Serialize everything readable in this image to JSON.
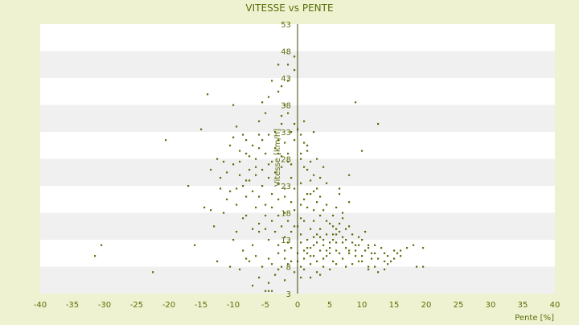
{
  "colors": {
    "background": "#eef2d0",
    "plot_band_white": "#ffffff",
    "plot_band_gray": "#f0f0f0",
    "point": "#5a6e0a",
    "text": "#5a6e0a",
    "axis_line": "#3a4a00"
  },
  "chart_data": {
    "type": "scatter",
    "title": "VITESSE vs PENTE",
    "xlabel": "Pente [%]",
    "ylabel": "Vitesse [km/h]",
    "xlim": [
      -40,
      40
    ],
    "ylim": [
      3,
      53
    ],
    "x_ticks": [
      "-40",
      "-35",
      "-30",
      "-25",
      "-20",
      "-15",
      "-10",
      "-5",
      "0",
      "5",
      "10",
      "15",
      "20",
      "25",
      "30",
      "35",
      "40"
    ],
    "y_ticks": [
      "3",
      "8",
      "13",
      "18",
      "23",
      "28",
      "33",
      "38",
      "43",
      "48",
      "53"
    ],
    "grid": "horizontal alternating bands",
    "points": [
      [
        -31.5,
        10
      ],
      [
        -30.5,
        12
      ],
      [
        -22.5,
        7
      ],
      [
        -14,
        40
      ],
      [
        -15,
        33.5
      ],
      [
        -20.5,
        31.5
      ],
      [
        -17,
        23
      ],
      [
        -13,
        15.5
      ],
      [
        -12.5,
        9
      ],
      [
        -10,
        38
      ],
      [
        -9.5,
        34
      ],
      [
        -8.5,
        32.5
      ],
      [
        -10.5,
        30.5
      ],
      [
        -8,
        31.5
      ],
      [
        -7.5,
        28.5
      ],
      [
        -9,
        27.5
      ],
      [
        -11.5,
        27.5
      ],
      [
        -12,
        24.5
      ],
      [
        -10.5,
        22
      ],
      [
        -9.5,
        19.5
      ],
      [
        -8.5,
        17
      ],
      [
        -11,
        20.5
      ],
      [
        -7,
        15
      ],
      [
        -7.5,
        9
      ],
      [
        -6.5,
        10
      ],
      [
        -5.5,
        8
      ],
      [
        -4.5,
        9.5
      ],
      [
        -10,
        13
      ],
      [
        -8,
        17.5
      ],
      [
        -8,
        24
      ],
      [
        -6,
        30
      ],
      [
        -6,
        35
      ],
      [
        -5,
        36.5
      ],
      [
        -5,
        3.5
      ],
      [
        -4.5,
        3.5
      ],
      [
        -4,
        3.5
      ],
      [
        -4,
        42.5
      ],
      [
        -3,
        40.5
      ],
      [
        -2,
        38
      ],
      [
        -1.5,
        45.5
      ],
      [
        -0.5,
        47
      ],
      [
        -1.5,
        36.5
      ],
      [
        -2.5,
        34.5
      ],
      [
        -3.5,
        33
      ],
      [
        -4.5,
        32.5
      ],
      [
        -5.5,
        31.5
      ],
      [
        -6.5,
        28
      ],
      [
        -3,
        29
      ],
      [
        -2,
        31
      ],
      [
        -1.5,
        29
      ],
      [
        -1,
        27
      ],
      [
        -2.5,
        26.5
      ],
      [
        -3.5,
        25.5
      ],
      [
        -4.5,
        24.5
      ],
      [
        -5.5,
        23
      ],
      [
        -6,
        21
      ],
      [
        -5,
        19.5
      ],
      [
        -4,
        21.5
      ],
      [
        -3,
        20.5
      ],
      [
        -2,
        22.5
      ],
      [
        -1,
        24.5
      ],
      [
        -0.5,
        22.5
      ],
      [
        -1,
        20
      ],
      [
        -2,
        18
      ],
      [
        -3,
        17.5
      ],
      [
        -4,
        16.5
      ],
      [
        -5,
        15
      ],
      [
        -4.5,
        13
      ],
      [
        -3.5,
        14.5
      ],
      [
        -2.5,
        15.5
      ],
      [
        -1.5,
        16.5
      ],
      [
        -0.5,
        18.5
      ],
      [
        -1.5,
        12.5
      ],
      [
        -2,
        11
      ],
      [
        -3,
        10.5
      ],
      [
        -1,
        9
      ],
      [
        -0.5,
        7
      ],
      [
        -1.5,
        8.5
      ],
      [
        -2.5,
        8
      ],
      [
        0.5,
        6
      ],
      [
        0.5,
        32.5
      ],
      [
        1,
        31
      ],
      [
        1.5,
        29.5
      ],
      [
        0.5,
        28
      ],
      [
        2,
        27.5
      ],
      [
        1.5,
        26
      ],
      [
        2.5,
        25
      ],
      [
        3.5,
        24.5
      ],
      [
        4,
        26.5
      ],
      [
        4.5,
        23.5
      ],
      [
        3,
        22.5
      ],
      [
        2,
        21.5
      ],
      [
        1,
        20.5
      ],
      [
        0.5,
        23.5
      ],
      [
        1.5,
        19
      ],
      [
        2.5,
        18.5
      ],
      [
        3.5,
        17.5
      ],
      [
        4.5,
        16.5
      ],
      [
        5.5,
        15.5
      ],
      [
        6,
        19
      ],
      [
        6.5,
        21.5
      ],
      [
        7,
        17
      ],
      [
        8,
        20
      ],
      [
        8,
        15.5
      ],
      [
        7,
        13.5
      ],
      [
        6,
        12.5
      ],
      [
        5,
        11.5
      ],
      [
        4,
        13
      ],
      [
        3,
        14
      ],
      [
        2,
        15
      ],
      [
        1,
        16.5
      ],
      [
        0.5,
        14
      ],
      [
        1.5,
        13
      ],
      [
        2.5,
        12
      ],
      [
        3.5,
        11
      ],
      [
        4.5,
        10
      ],
      [
        5.5,
        9
      ],
      [
        6.5,
        10.5
      ],
      [
        7.5,
        11.5
      ],
      [
        8.5,
        12.5
      ],
      [
        9.5,
        13.5
      ],
      [
        10.5,
        14.5
      ],
      [
        11,
        12
      ],
      [
        12,
        10.5
      ],
      [
        13,
        11.5
      ],
      [
        14,
        10
      ],
      [
        15,
        9.5
      ],
      [
        16,
        11
      ],
      [
        16,
        10
      ],
      [
        18.5,
        8
      ],
      [
        18,
        12
      ],
      [
        19.5,
        8
      ],
      [
        19.5,
        11.5
      ],
      [
        13.5,
        7.5
      ],
      [
        11,
        8
      ],
      [
        9.5,
        9
      ],
      [
        8.5,
        8.5
      ],
      [
        7.5,
        8
      ],
      [
        6,
        8.5
      ],
      [
        5,
        7.5
      ],
      [
        4,
        8
      ],
      [
        3,
        9
      ],
      [
        2,
        10
      ],
      [
        1,
        11
      ],
      [
        9,
        38.5
      ],
      [
        12.5,
        34.5
      ],
      [
        10,
        29.5
      ],
      [
        8,
        25
      ],
      [
        6.5,
        22.5
      ],
      [
        7.5,
        13
      ],
      [
        9,
        11
      ],
      [
        10,
        10
      ],
      [
        11.5,
        9.5
      ],
      [
        12,
        8
      ],
      [
        14.5,
        9
      ],
      [
        2,
        8.5
      ],
      [
        3.5,
        6.5
      ],
      [
        1,
        7.5
      ],
      [
        -3,
        45.5
      ],
      [
        -3,
        12
      ],
      [
        -6,
        14.5
      ],
      [
        -7,
        12
      ],
      [
        -0.5,
        34.5
      ],
      [
        0,
        33.5
      ],
      [
        1,
        35
      ],
      [
        1.5,
        30.5
      ],
      [
        -1,
        33
      ],
      [
        2.5,
        33
      ],
      [
        -2.5,
        36
      ],
      [
        -7,
        22
      ],
      [
        -6.5,
        19
      ],
      [
        -8,
        21
      ],
      [
        -9,
        25
      ],
      [
        -10,
        27
      ],
      [
        -11,
        25.5
      ],
      [
        -7.5,
        26
      ],
      [
        -6.5,
        25
      ],
      [
        -4,
        27.5
      ],
      [
        -3,
        31.5
      ],
      [
        -5,
        29
      ],
      [
        3,
        20
      ],
      [
        4.5,
        19.5
      ],
      [
        5.5,
        17.5
      ],
      [
        2.5,
        16.5
      ],
      [
        0.5,
        17
      ],
      [
        -0.5,
        15.5
      ],
      [
        0.5,
        12.5
      ],
      [
        1.5,
        11.5
      ],
      [
        2.5,
        13.5
      ],
      [
        3.5,
        15
      ],
      [
        4.5,
        14
      ],
      [
        5.5,
        13
      ],
      [
        6.5,
        14.5
      ],
      [
        7.5,
        15
      ],
      [
        8.5,
        14
      ],
      [
        9.5,
        12
      ],
      [
        10.5,
        11
      ],
      [
        11.5,
        10.5
      ],
      [
        12.5,
        9.5
      ],
      [
        13.5,
        9
      ],
      [
        15,
        11
      ],
      [
        17,
        11.5
      ],
      [
        -13.5,
        18.5
      ],
      [
        -12,
        22.5
      ],
      [
        -11.5,
        18
      ],
      [
        -9.5,
        14.5
      ],
      [
        -8.5,
        11
      ],
      [
        -6,
        6
      ],
      [
        -4.5,
        5
      ],
      [
        -3.5,
        6.5
      ],
      [
        -2,
        5.5
      ],
      [
        -5.5,
        38.5
      ],
      [
        -4.5,
        39.5
      ],
      [
        -2.5,
        41.5
      ],
      [
        -1.5,
        42.5
      ],
      [
        -0.5,
        44.5
      ],
      [
        -0.5,
        31.5
      ],
      [
        0.5,
        29
      ],
      [
        1,
        26.5
      ],
      [
        2,
        24
      ],
      [
        3,
        28
      ],
      [
        -1.5,
        27.5
      ],
      [
        -2.5,
        28.5
      ],
      [
        -3.5,
        30
      ],
      [
        -4.5,
        27
      ],
      [
        -5.5,
        26
      ],
      [
        -6.5,
        26.5
      ],
      [
        -7.5,
        24
      ],
      [
        -8.5,
        23
      ],
      [
        -9.5,
        22.5
      ],
      [
        -2,
        21
      ],
      [
        -3,
        23.5
      ],
      [
        -4,
        19
      ],
      [
        -5,
        17.5
      ],
      [
        -6,
        16
      ],
      [
        -2,
        13.5
      ],
      [
        -1,
        14.5
      ],
      [
        0,
        15.5
      ],
      [
        0.5,
        19.5
      ],
      [
        1.5,
        21.5
      ],
      [
        2.5,
        22
      ],
      [
        3.5,
        21
      ],
      [
        4,
        18.5
      ],
      [
        5,
        16
      ],
      [
        6,
        14
      ],
      [
        7,
        12.5
      ],
      [
        8,
        11
      ],
      [
        9,
        10
      ],
      [
        10,
        9
      ],
      [
        11,
        7.5
      ],
      [
        12.5,
        7
      ],
      [
        13.5,
        10.5
      ],
      [
        14,
        8.5
      ],
      [
        15.5,
        10.5
      ],
      [
        2,
        6
      ],
      [
        3,
        7
      ],
      [
        4,
        9.5
      ],
      [
        5,
        10.5
      ],
      [
        6,
        11
      ],
      [
        7,
        9.5
      ],
      [
        8,
        10.5
      ],
      [
        9,
        12
      ],
      [
        10,
        13
      ],
      [
        11,
        11.5
      ],
      [
        12,
        12
      ],
      [
        -1,
        11.5
      ],
      [
        -2,
        9.5
      ],
      [
        -3,
        7.5
      ],
      [
        -4,
        8.5
      ],
      [
        0,
        10.5
      ],
      [
        0,
        9
      ],
      [
        0.5,
        8
      ],
      [
        1,
        9.5
      ],
      [
        1.5,
        10.5
      ],
      [
        2,
        11.5
      ],
      [
        2.5,
        10
      ],
      [
        3,
        12.5
      ],
      [
        3.5,
        13.5
      ],
      [
        4,
        12
      ],
      [
        4.5,
        11
      ],
      [
        5,
        12.5
      ],
      [
        5.5,
        14
      ],
      [
        6,
        15
      ],
      [
        6.5,
        16
      ],
      [
        7,
        18
      ],
      [
        -6,
        32.5
      ],
      [
        -7,
        30.5
      ],
      [
        -8,
        29
      ],
      [
        -9,
        29.5
      ],
      [
        -10,
        32
      ],
      [
        -12.5,
        28
      ],
      [
        -13.5,
        26
      ],
      [
        -14.5,
        19
      ],
      [
        -16,
        12
      ],
      [
        -10.5,
        8
      ],
      [
        -9,
        7.5
      ],
      [
        -7,
        4.5
      ],
      [
        -8,
        9.5
      ]
    ]
  }
}
